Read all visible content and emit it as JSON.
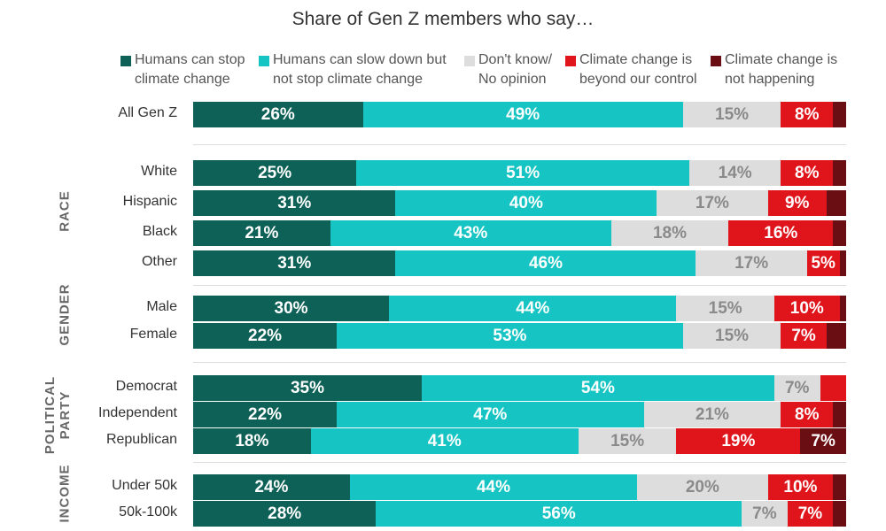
{
  "chart_data": {
    "type": "bar",
    "orientation": "horizontal",
    "stacked": true,
    "title": "Share of Gen Z members who say…",
    "series": [
      {
        "name": "Humans can stop\nclimate change",
        "color": "#0e6157",
        "label_color": "#ffffff"
      },
      {
        "name": "Humans can slow down but\nnot stop climate change",
        "color": "#16c5c3",
        "label_color": "#ffffff"
      },
      {
        "name": "Don't know/\nNo opinion",
        "color": "#dddddd",
        "label_color": "#8a8a8a"
      },
      {
        "name": "Climate change is\nbeyond our control",
        "color": "#e0141b",
        "label_color": "#ffffff"
      },
      {
        "name": "Climate change is\nnot happening",
        "color": "#6b0e13",
        "label_color": "#ffffff"
      }
    ],
    "groups": [
      {
        "label": "",
        "rows": [
          {
            "label": "All Gen Z",
            "values": [
              26,
              49,
              15,
              8,
              2
            ],
            "labels": [
              "26%",
              "49%",
              "15%",
              "8%",
              ""
            ]
          }
        ]
      },
      {
        "label": "RACE",
        "rows": [
          {
            "label": "White",
            "values": [
              25,
              51,
              14,
              8,
              2
            ],
            "labels": [
              "25%",
              "51%",
              "14%",
              "8%",
              ""
            ]
          },
          {
            "label": "Hispanic",
            "values": [
              31,
              40,
              17,
              9,
              3
            ],
            "labels": [
              "31%",
              "40%",
              "17%",
              "9%",
              ""
            ]
          },
          {
            "label": "Black",
            "values": [
              21,
              43,
              18,
              16,
              2
            ],
            "labels": [
              "21%",
              "43%",
              "18%",
              "16%",
              ""
            ]
          },
          {
            "label": "Other",
            "values": [
              31,
              46,
              17,
              5,
              1
            ],
            "labels": [
              "31%",
              "46%",
              "17%",
              "5%",
              ""
            ]
          }
        ]
      },
      {
        "label": "GENDER",
        "rows": [
          {
            "label": "Male",
            "values": [
              30,
              44,
              15,
              10,
              1
            ],
            "labels": [
              "30%",
              "44%",
              "15%",
              "10%",
              ""
            ]
          },
          {
            "label": "Female",
            "values": [
              22,
              53,
              15,
              7,
              3
            ],
            "labels": [
              "22%",
              "53%",
              "15%",
              "7%",
              ""
            ]
          }
        ]
      },
      {
        "label": "POLITICAL\nPARTY",
        "rows": [
          {
            "label": "Democrat",
            "values": [
              35,
              54,
              7,
              4,
              0
            ],
            "labels": [
              "35%",
              "54%",
              "7%",
              "",
              ""
            ]
          },
          {
            "label": "Independent",
            "values": [
              22,
              47,
              21,
              8,
              2
            ],
            "labels": [
              "22%",
              "47%",
              "21%",
              "8%",
              ""
            ]
          },
          {
            "label": "Republican",
            "values": [
              18,
              41,
              15,
              19,
              7
            ],
            "labels": [
              "18%",
              "41%",
              "15%",
              "19%",
              "7%"
            ]
          }
        ]
      },
      {
        "label": "INCOME",
        "rows": [
          {
            "label": "Under 50k",
            "values": [
              24,
              44,
              20,
              10,
              2
            ],
            "labels": [
              "24%",
              "44%",
              "20%",
              "10%",
              ""
            ]
          },
          {
            "label": "50k-100k",
            "values": [
              28,
              56,
              7,
              7,
              2
            ],
            "labels": [
              "28%",
              "56%",
              "7%",
              "7%",
              ""
            ]
          }
        ]
      }
    ],
    "xlim": [
      0,
      100
    ]
  }
}
